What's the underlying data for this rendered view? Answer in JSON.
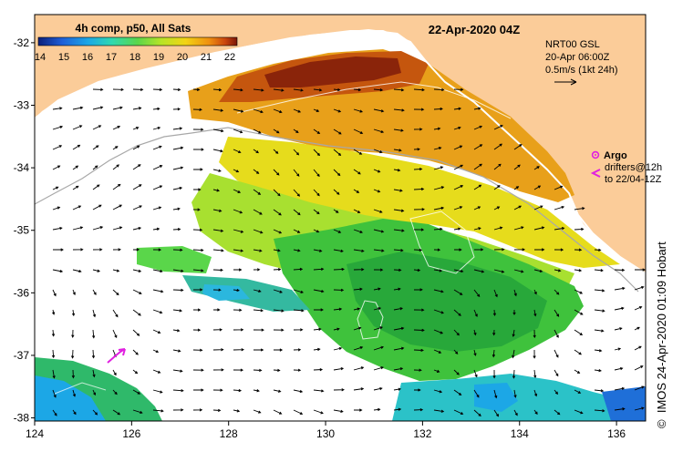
{
  "map": {
    "title": "22-Apr-2020 04Z",
    "colorbar": {
      "title": "4h comp, p50, All Sats",
      "ticks": [
        "14",
        "15",
        "16",
        "17",
        "18",
        "19",
        "20",
        "21",
        "22"
      ],
      "range": [
        14,
        22
      ],
      "colors": [
        "#0c1f7a",
        "#1f5fd8",
        "#1ca7e6",
        "#2fd9b0",
        "#5ad64a",
        "#b8e426",
        "#f2d414",
        "#ef8f10",
        "#c9450e",
        "#7a1508"
      ]
    },
    "x_ticks": [
      "124",
      "126",
      "128",
      "130",
      "132",
      "134",
      "136"
    ],
    "x_values": [
      124,
      126,
      128,
      130,
      132,
      134,
      136
    ],
    "y_ticks": [
      "-32",
      "-33",
      "-34",
      "-35",
      "-36",
      "-37",
      "-38"
    ],
    "y_values": [
      -32,
      -33,
      -34,
      -35,
      -36,
      -37,
      -38
    ],
    "lon_range": [
      124,
      136.6
    ],
    "lat_range": [
      -38.05,
      -31.55
    ],
    "land_color": "#fbcc99",
    "legend": {
      "product": "NRT00 GSL",
      "date": "20-Apr 06:00Z",
      "scale": "0.5m/s (1kt 24h)",
      "argo_label": "Argo",
      "drifters_label": "drifters@12h",
      "drifters_to": "to 22/04-12Z"
    },
    "credit": "IMOS 24-Apr-2020 01:09 Hobart",
    "copyright": "©"
  }
}
